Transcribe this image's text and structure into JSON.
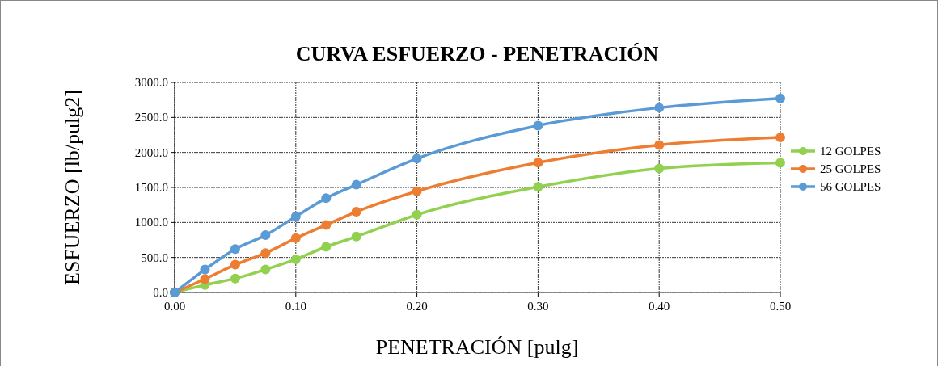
{
  "chart_data": {
    "type": "line",
    "title": "CURVA ESFUERZO - PENETRACIÓN",
    "xlabel": "PENETRACIÓN [pulg]",
    "ylabel": "ESFUERZO [lb/pulg2]",
    "x": [
      0,
      0.025,
      0.05,
      0.075,
      0.1,
      0.125,
      0.15,
      0.2,
      0.3,
      0.4,
      0.5
    ],
    "series": [
      {
        "name": "12 GOLPES",
        "color": "#92d050",
        "values": [
          0,
          108,
          200,
          328,
          474,
          652,
          798,
          1111,
          1508,
          1770,
          1851
        ]
      },
      {
        "name": "25 GOLPES",
        "color": "#ed7d31",
        "values": [
          0,
          193,
          397,
          563,
          775,
          964,
          1153,
          1446,
          1855,
          2106,
          2214
        ]
      },
      {
        "name": "56 GOLPES",
        "color": "#5b9bd5",
        "values": [
          0,
          328,
          621,
          818,
          1084,
          1346,
          1539,
          1913,
          2383,
          2638,
          2773
        ]
      }
    ],
    "xlim": [
      0,
      0.5
    ],
    "xticks": [
      {
        "value": 0,
        "label": "0.00"
      },
      {
        "value": 0.1,
        "label": "0.10"
      },
      {
        "value": 0.2,
        "label": "0.20"
      },
      {
        "value": 0.3,
        "label": "0.30"
      },
      {
        "value": 0.4,
        "label": "0.40"
      },
      {
        "value": 0.5,
        "label": "0.50"
      }
    ],
    "ylim": [
      0,
      3000
    ],
    "yticks": [
      {
        "value": 0,
        "label": "0.0"
      },
      {
        "value": 500,
        "label": "500.0"
      },
      {
        "value": 1000,
        "label": "1000.0"
      },
      {
        "value": 1500,
        "label": "1500.0"
      },
      {
        "value": 2000,
        "label": "2000.0"
      },
      {
        "value": 2500,
        "label": "2500.0"
      },
      {
        "value": 3000,
        "label": "3000.0"
      }
    ],
    "grid": true,
    "legend": "right",
    "marker": "circle",
    "line_style": "solid"
  }
}
